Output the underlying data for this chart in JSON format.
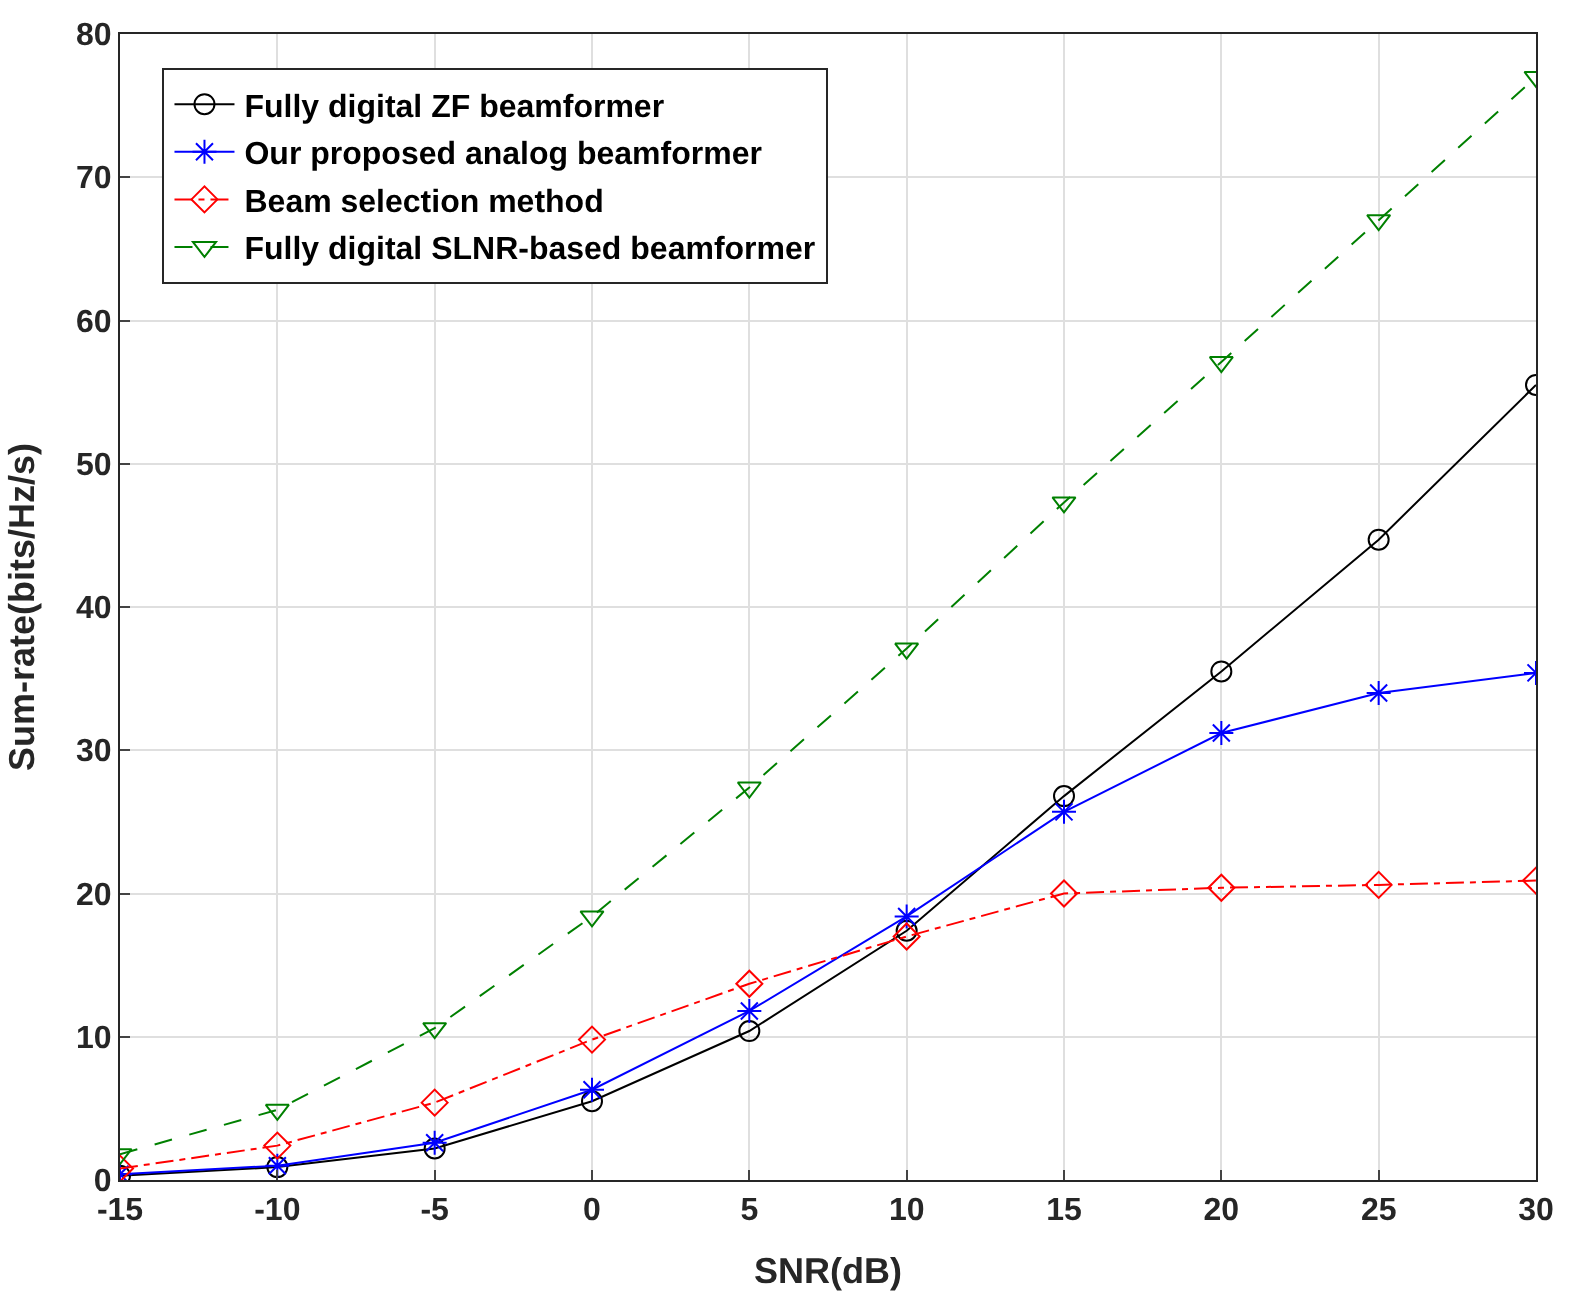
{
  "chart_data": {
    "type": "line",
    "xlabel": "SNR(dB)",
    "ylabel": "Sum-rate(bits/Hz/s)",
    "x": [
      -15,
      -10,
      -5,
      0,
      5,
      10,
      15,
      20,
      25,
      30
    ],
    "xlim": [
      -15,
      30
    ],
    "xticks": [
      -15,
      -10,
      -5,
      0,
      5,
      10,
      15,
      20,
      25,
      30
    ],
    "ylim": [
      0,
      80
    ],
    "yticks": [
      0,
      10,
      20,
      30,
      40,
      50,
      60,
      70,
      80
    ],
    "grid": true,
    "legend": "top left",
    "series": [
      {
        "name": "Fully digital ZF beamformer",
        "color": "#000000",
        "marker": "circle",
        "line_style": "solid",
        "values": [
          0.3,
          0.9,
          2.2,
          5.5,
          10.4,
          17.4,
          26.8,
          35.5,
          44.7,
          55.5
        ]
      },
      {
        "name": "Our proposed analog beamformer",
        "color": "#0000ff",
        "marker": "cross",
        "line_style": "solid",
        "values": [
          0.4,
          1.0,
          2.6,
          6.3,
          11.8,
          18.4,
          25.7,
          31.2,
          34.0,
          35.4
        ]
      },
      {
        "name": "Beam selection method",
        "color": "#ff0000",
        "marker": "diamond",
        "line_style": "dashdot",
        "values": [
          0.8,
          2.4,
          5.4,
          9.8,
          13.7,
          17.0,
          20.0,
          20.4,
          20.6,
          20.9
        ]
      },
      {
        "name": "Fully digital SLNR-based beamformer",
        "color": "#008000",
        "marker": "triangle",
        "line_style": "dashed",
        "values": [
          1.8,
          4.9,
          10.6,
          18.4,
          27.4,
          37.1,
          47.3,
          57.1,
          67.0,
          77.0
        ]
      }
    ]
  }
}
